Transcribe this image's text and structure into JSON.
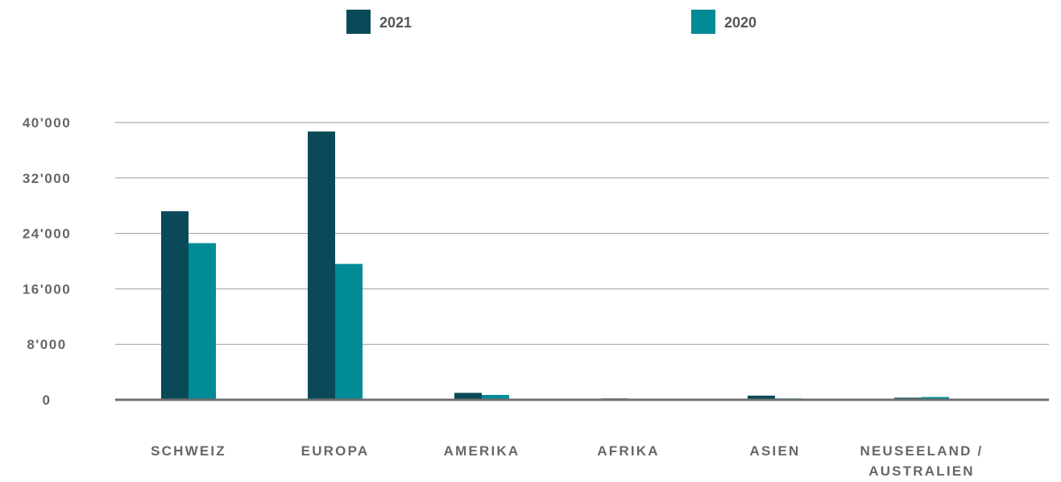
{
  "chart_data": {
    "type": "bar",
    "categories": [
      [
        "SCHWEIZ"
      ],
      [
        "EUROPA"
      ],
      [
        "AMERIKA"
      ],
      [
        "AFRIKA"
      ],
      [
        "ASIEN"
      ],
      [
        "NEUSEELAND /",
        "AUSTRALIEN"
      ]
    ],
    "series": [
      {
        "name": "2021",
        "color": "#0a4a58",
        "values": [
          27200,
          38700,
          1000,
          200,
          600,
          300
        ]
      },
      {
        "name": "2020",
        "color": "#008b96",
        "values": [
          22600,
          19600,
          700,
          50,
          200,
          400
        ]
      }
    ],
    "ylim": [
      0,
      40000
    ],
    "yticks": [
      0,
      8000,
      16000,
      24000,
      32000,
      40000
    ],
    "ytick_labels": [
      "0",
      "8'000",
      "16'000",
      "24'000",
      "32'000",
      "40'000"
    ],
    "title": "",
    "xlabel": "",
    "ylabel": "",
    "grid": true,
    "legend_position": "top"
  }
}
